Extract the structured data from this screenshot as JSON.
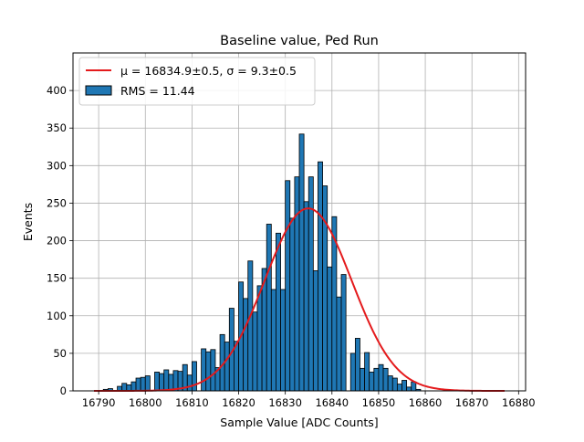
{
  "chart_data": {
    "type": "bar",
    "title": "Baseline value, Ped Run",
    "xlabel": "Sample Value [ADC Counts]",
    "ylabel": "Events",
    "xlim": [
      16784.5,
      16881.5
    ],
    "ylim": [
      0,
      450
    ],
    "xticks": [
      16790,
      16800,
      16810,
      16820,
      16830,
      16840,
      16850,
      16860,
      16870,
      16880
    ],
    "yticks": [
      0,
      50,
      100,
      150,
      200,
      250,
      300,
      350,
      400
    ],
    "grid": true,
    "legend_position": "top-left",
    "histogram": {
      "name": "RMS = 11.44",
      "color": "#1f77b4",
      "edgecolor": "#000000",
      "bin_start": 16791,
      "bin_width": 1,
      "counts": [
        2,
        3,
        0,
        6,
        10,
        8,
        12,
        17,
        18,
        20,
        0,
        25,
        23,
        28,
        22,
        27,
        26,
        35,
        21,
        39,
        0,
        56,
        52,
        55,
        31,
        75,
        65,
        110,
        66,
        145,
        123,
        173,
        105,
        140,
        163,
        222,
        135,
        210,
        135,
        280,
        230,
        285,
        342,
        252,
        285,
        160,
        305,
        273,
        165,
        232,
        125,
        155,
        0,
        50,
        70,
        30,
        51,
        25,
        30,
        35,
        30,
        20,
        17,
        9,
        14,
        5,
        12,
        2,
        0,
        0,
        0,
        0,
        0,
        0,
        0,
        0
      ]
    },
    "fit": {
      "name": "$\\mu = 16834.9 \\pm 0.5$, $\\sigma = 9.3 \\pm 0.5$",
      "color": "#e41a1c",
      "mu": 16834.9,
      "sigma": 9.3,
      "amplitude": 243,
      "x_range": [
        16789,
        16877
      ]
    }
  },
  "legend": {
    "fit_label": "μ = 16834.9±0.5, σ = 9.3±0.5",
    "hist_label": "RMS = 11.44"
  }
}
